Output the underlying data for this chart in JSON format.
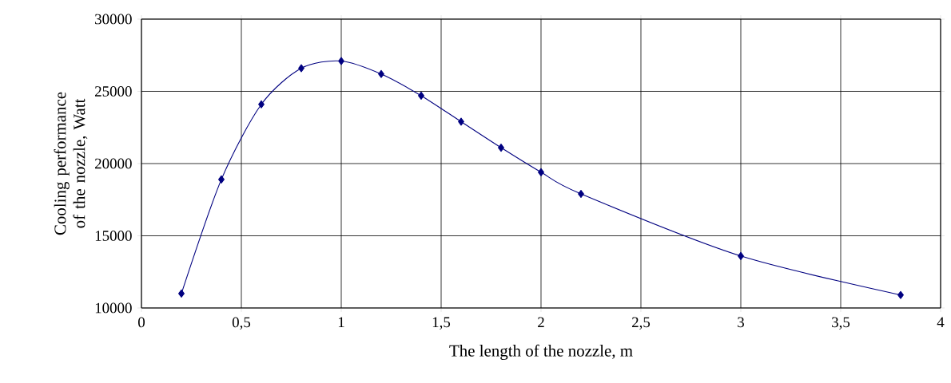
{
  "chart_data": {
    "type": "line",
    "xlabel": "The length of the nozzle, m",
    "ylabel": "Cooling performance of the nozzle, Watt",
    "x": [
      0.2,
      0.4,
      0.6,
      0.8,
      1.0,
      1.2,
      1.4,
      1.6,
      1.8,
      2.0,
      2.2,
      3.0,
      3.8
    ],
    "series": [
      {
        "color": "#000080",
        "values": [
          11000,
          18900,
          24100,
          26600,
          27100,
          26200,
          24700,
          22900,
          21100,
          19400,
          17900,
          13600,
          10900
        ]
      }
    ],
    "marker": "diamond",
    "line_style": "solid",
    "grid": true,
    "xlim": [
      0,
      4
    ],
    "ylim": [
      10000,
      30000
    ],
    "xticks": [
      0,
      {
        "value": 0.5,
        "label": "0,5"
      },
      1,
      {
        "value": 1.5,
        "label": "1,5"
      },
      2,
      {
        "value": 2.5,
        "label": "2,5"
      },
      3,
      {
        "value": 3.5,
        "label": "3,5"
      },
      4
    ],
    "yticks": [
      10000,
      15000,
      20000,
      25000,
      30000
    ]
  }
}
